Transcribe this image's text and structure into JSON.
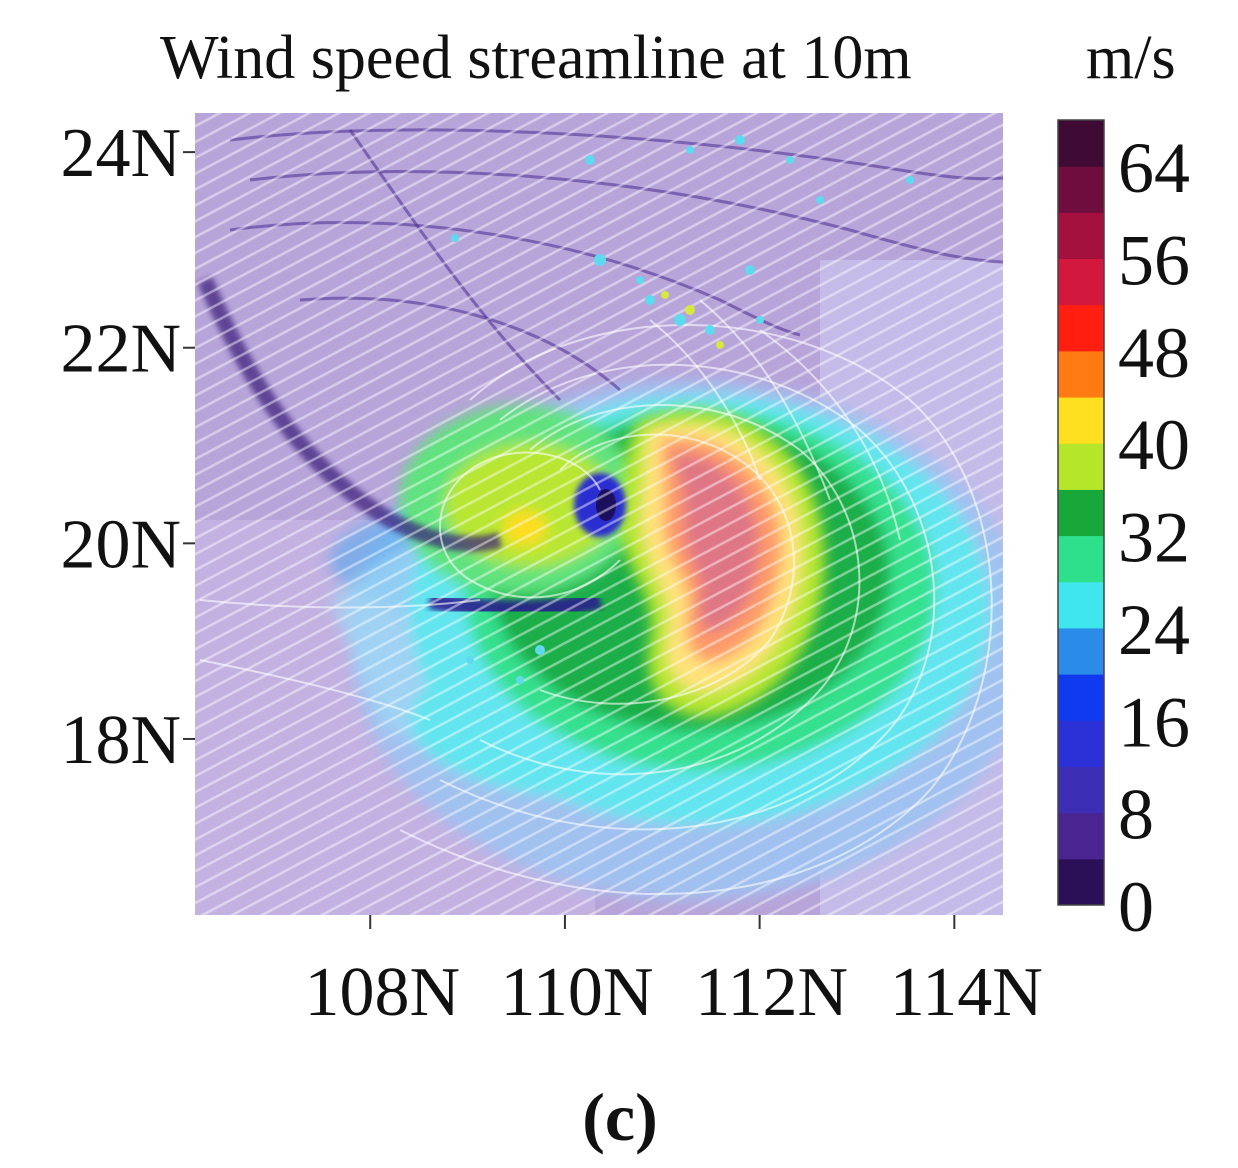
{
  "figure": {
    "title": "Wind speed streamline at 10m",
    "unit": "m/s",
    "panel_label": "(c)"
  },
  "chart_data": {
    "type": "heatmap",
    "title": "Wind speed streamline at 10m",
    "colorbar_label": "m/s",
    "x_tick_labels": [
      "108N",
      "110N",
      "112N",
      "114N"
    ],
    "x_ticks": [
      108,
      110,
      112,
      114
    ],
    "y_tick_labels": [
      "18N",
      "20N",
      "22N",
      "24N"
    ],
    "y_ticks": [
      18,
      20,
      22,
      24
    ],
    "xlim": [
      106.2,
      114.5
    ],
    "ylim": [
      16.2,
      24.4
    ],
    "colorbar": {
      "range": [
        0,
        68
      ],
      "tick_labels": [
        "0",
        "8",
        "16",
        "24",
        "32",
        "40",
        "48",
        "56",
        "64"
      ],
      "ticks": [
        0,
        8,
        16,
        24,
        32,
        40,
        48,
        56,
        64
      ],
      "levels": [
        {
          "from": 0,
          "to": 4,
          "color": "#2b0f57"
        },
        {
          "from": 4,
          "to": 8,
          "color": "#4a2490"
        },
        {
          "from": 8,
          "to": 12,
          "color": "#3c2fb5"
        },
        {
          "from": 12,
          "to": 16,
          "color": "#2b2fd6"
        },
        {
          "from": 16,
          "to": 20,
          "color": "#0f3af0"
        },
        {
          "from": 20,
          "to": 24,
          "color": "#2a8ce8"
        },
        {
          "from": 24,
          "to": 28,
          "color": "#3fe6ee"
        },
        {
          "from": 28,
          "to": 32,
          "color": "#2ee08c"
        },
        {
          "from": 32,
          "to": 36,
          "color": "#18a83a"
        },
        {
          "from": 36,
          "to": 40,
          "color": "#b6e62a"
        },
        {
          "from": 40,
          "to": 44,
          "color": "#ffe020"
        },
        {
          "from": 44,
          "to": 48,
          "color": "#ff7a12"
        },
        {
          "from": 48,
          "to": 52,
          "color": "#ff1e10"
        },
        {
          "from": 52,
          "to": 56,
          "color": "#d3183e"
        },
        {
          "from": 56,
          "to": 60,
          "color": "#a3103e"
        },
        {
          "from": 60,
          "to": 64,
          "color": "#6e0d3e"
        },
        {
          "from": 64,
          "to": 68,
          "color": "#3f0a34"
        }
      ]
    },
    "cyclone_center": {
      "lon": 110.4,
      "lat": 20.1
    },
    "wind_field_features": [
      {
        "feature": "calm eye",
        "speed_ms": 8,
        "lon": 110.4,
        "lat": 20.1
      },
      {
        "feature": "eastern maximum",
        "speed_ms": 56,
        "lon": 111.3,
        "lat": 20.1
      },
      {
        "feature": "western maximum",
        "speed_ms": 44,
        "lon": 109.3,
        "lat": 20.0
      }
    ]
  }
}
